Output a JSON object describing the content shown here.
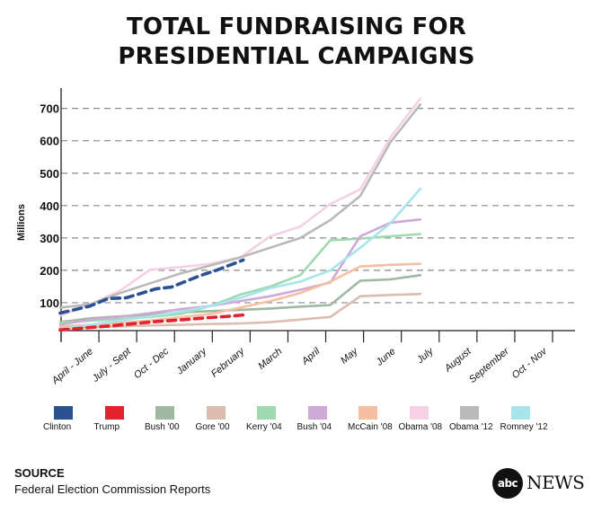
{
  "chart_data": {
    "type": "line",
    "title": [
      "TOTAL FUNDRAISING FOR",
      "PRESIDENTIAL CAMPAIGNS"
    ],
    "ylabel": "Millions",
    "yticks": [
      100,
      200,
      300,
      400,
      500,
      600,
      700
    ],
    "ylim": [
      0,
      730
    ],
    "categories": [
      "April - June",
      "July - Sept",
      "Oct - Dec",
      "January",
      "February",
      "March",
      "April",
      "May",
      "June",
      "July",
      "August",
      "September",
      "Oct - Nov"
    ],
    "grid": "horizontal dashed",
    "series": [
      {
        "name": "Clinton",
        "color": "#2b5290",
        "style": "dashed",
        "x": [
          0,
          1,
          1.6,
          2.2,
          3.2,
          3.7,
          4.7,
          5.2,
          6.1
        ],
        "values": [
          68,
          90,
          113,
          115,
          143,
          148,
          185,
          200,
          232
        ]
      },
      {
        "name": "Trump",
        "color": "#e2232f",
        "style": "dashed",
        "x": [
          0,
          0.8,
          1.6,
          2.4,
          3.2,
          4.0,
          4.8,
          5.6,
          6.2
        ],
        "values": [
          16,
          22,
          28,
          35,
          42,
          47,
          53,
          58,
          63
        ]
      },
      {
        "name": "Bush '00",
        "color": "#9fb8a2",
        "style": "solid",
        "x": [
          0,
          1,
          2,
          3,
          4,
          5,
          6,
          7,
          8,
          9,
          10,
          11,
          12
        ],
        "values": [
          40,
          52,
          58,
          63,
          70,
          74,
          78,
          82,
          88,
          93,
          168,
          172,
          185
        ]
      },
      {
        "name": "Gore '00",
        "color": "#dbbdaf",
        "style": "solid",
        "x": [
          0,
          1,
          2,
          3,
          4,
          5,
          6,
          7,
          8,
          9,
          10,
          11,
          12
        ],
        "values": [
          20,
          24,
          27,
          30,
          32,
          34,
          36,
          40,
          48,
          56,
          120,
          124,
          127
        ]
      },
      {
        "name": "Kerry '04",
        "color": "#9fd9b0",
        "style": "solid",
        "x": [
          0,
          1,
          2,
          3,
          4,
          5,
          6,
          7,
          8,
          9,
          10,
          11,
          12
        ],
        "values": [
          38,
          44,
          50,
          56,
          65,
          90,
          125,
          150,
          185,
          293,
          298,
          305,
          312
        ]
      },
      {
        "name": "Bush '04",
        "color": "#cfa9d6",
        "style": "solid",
        "x": [
          0,
          1,
          2,
          3,
          4,
          5,
          6,
          7,
          8,
          9,
          10,
          11,
          12
        ],
        "values": [
          32,
          48,
          57,
          68,
          80,
          90,
          105,
          120,
          140,
          162,
          305,
          347,
          357
        ]
      },
      {
        "name": "McCain '08",
        "color": "#f6bfa1",
        "style": "solid",
        "x": [
          0,
          1,
          2,
          3,
          4,
          5,
          6,
          7,
          8,
          9,
          10,
          11,
          12
        ],
        "values": [
          26,
          32,
          38,
          45,
          55,
          65,
          85,
          105,
          130,
          165,
          212,
          217,
          220
        ]
      },
      {
        "name": "Obama '08",
        "color": "#f5d1e6",
        "style": "solid",
        "x": [
          0,
          1,
          2,
          3,
          4,
          5,
          6,
          7,
          8,
          9,
          10,
          11,
          12
        ],
        "values": [
          60,
          95,
          138,
          202,
          210,
          220,
          240,
          305,
          335,
          405,
          450,
          610,
          730
        ]
      },
      {
        "name": "Obama '12",
        "color": "#b9b9b9",
        "style": "solid",
        "x": [
          0,
          1,
          2,
          3,
          4,
          5,
          6,
          7,
          8,
          9,
          10,
          11,
          12
        ],
        "values": [
          85,
          95,
          130,
          160,
          190,
          215,
          240,
          270,
          300,
          355,
          430,
          595,
          712
        ]
      },
      {
        "name": "Romney '12",
        "color": "#a8e4ec",
        "style": "solid",
        "x": [
          0,
          1,
          2,
          3,
          4,
          5,
          6,
          7,
          8,
          9,
          10,
          11,
          12
        ],
        "values": [
          18,
          32,
          45,
          58,
          72,
          90,
          115,
          145,
          165,
          200,
          270,
          345,
          452
        ]
      }
    ]
  },
  "legend": [
    {
      "label": "Clinton",
      "color": "#2b5290"
    },
    {
      "label": "Trump",
      "color": "#e2232f"
    },
    {
      "label": "Bush '00",
      "color": "#9fb8a2"
    },
    {
      "label": "Gore '00",
      "color": "#dbbdaf"
    },
    {
      "label": "Kerry '04",
      "color": "#9fd9b0"
    },
    {
      "label": "Bush '04",
      "color": "#cfa9d6"
    },
    {
      "label": "McCain '08",
      "color": "#f6bfa1"
    },
    {
      "label": "Obama '08",
      "color": "#f5d1e6"
    },
    {
      "label": "Obama '12",
      "color": "#b9b9b9"
    },
    {
      "label": "Romney '12",
      "color": "#a8e4ec"
    }
  ],
  "source": {
    "heading": "SOURCE",
    "text": "Federal Election Commission Reports"
  },
  "logo": {
    "circle_text": "abc",
    "wordmark": "NEWS"
  }
}
